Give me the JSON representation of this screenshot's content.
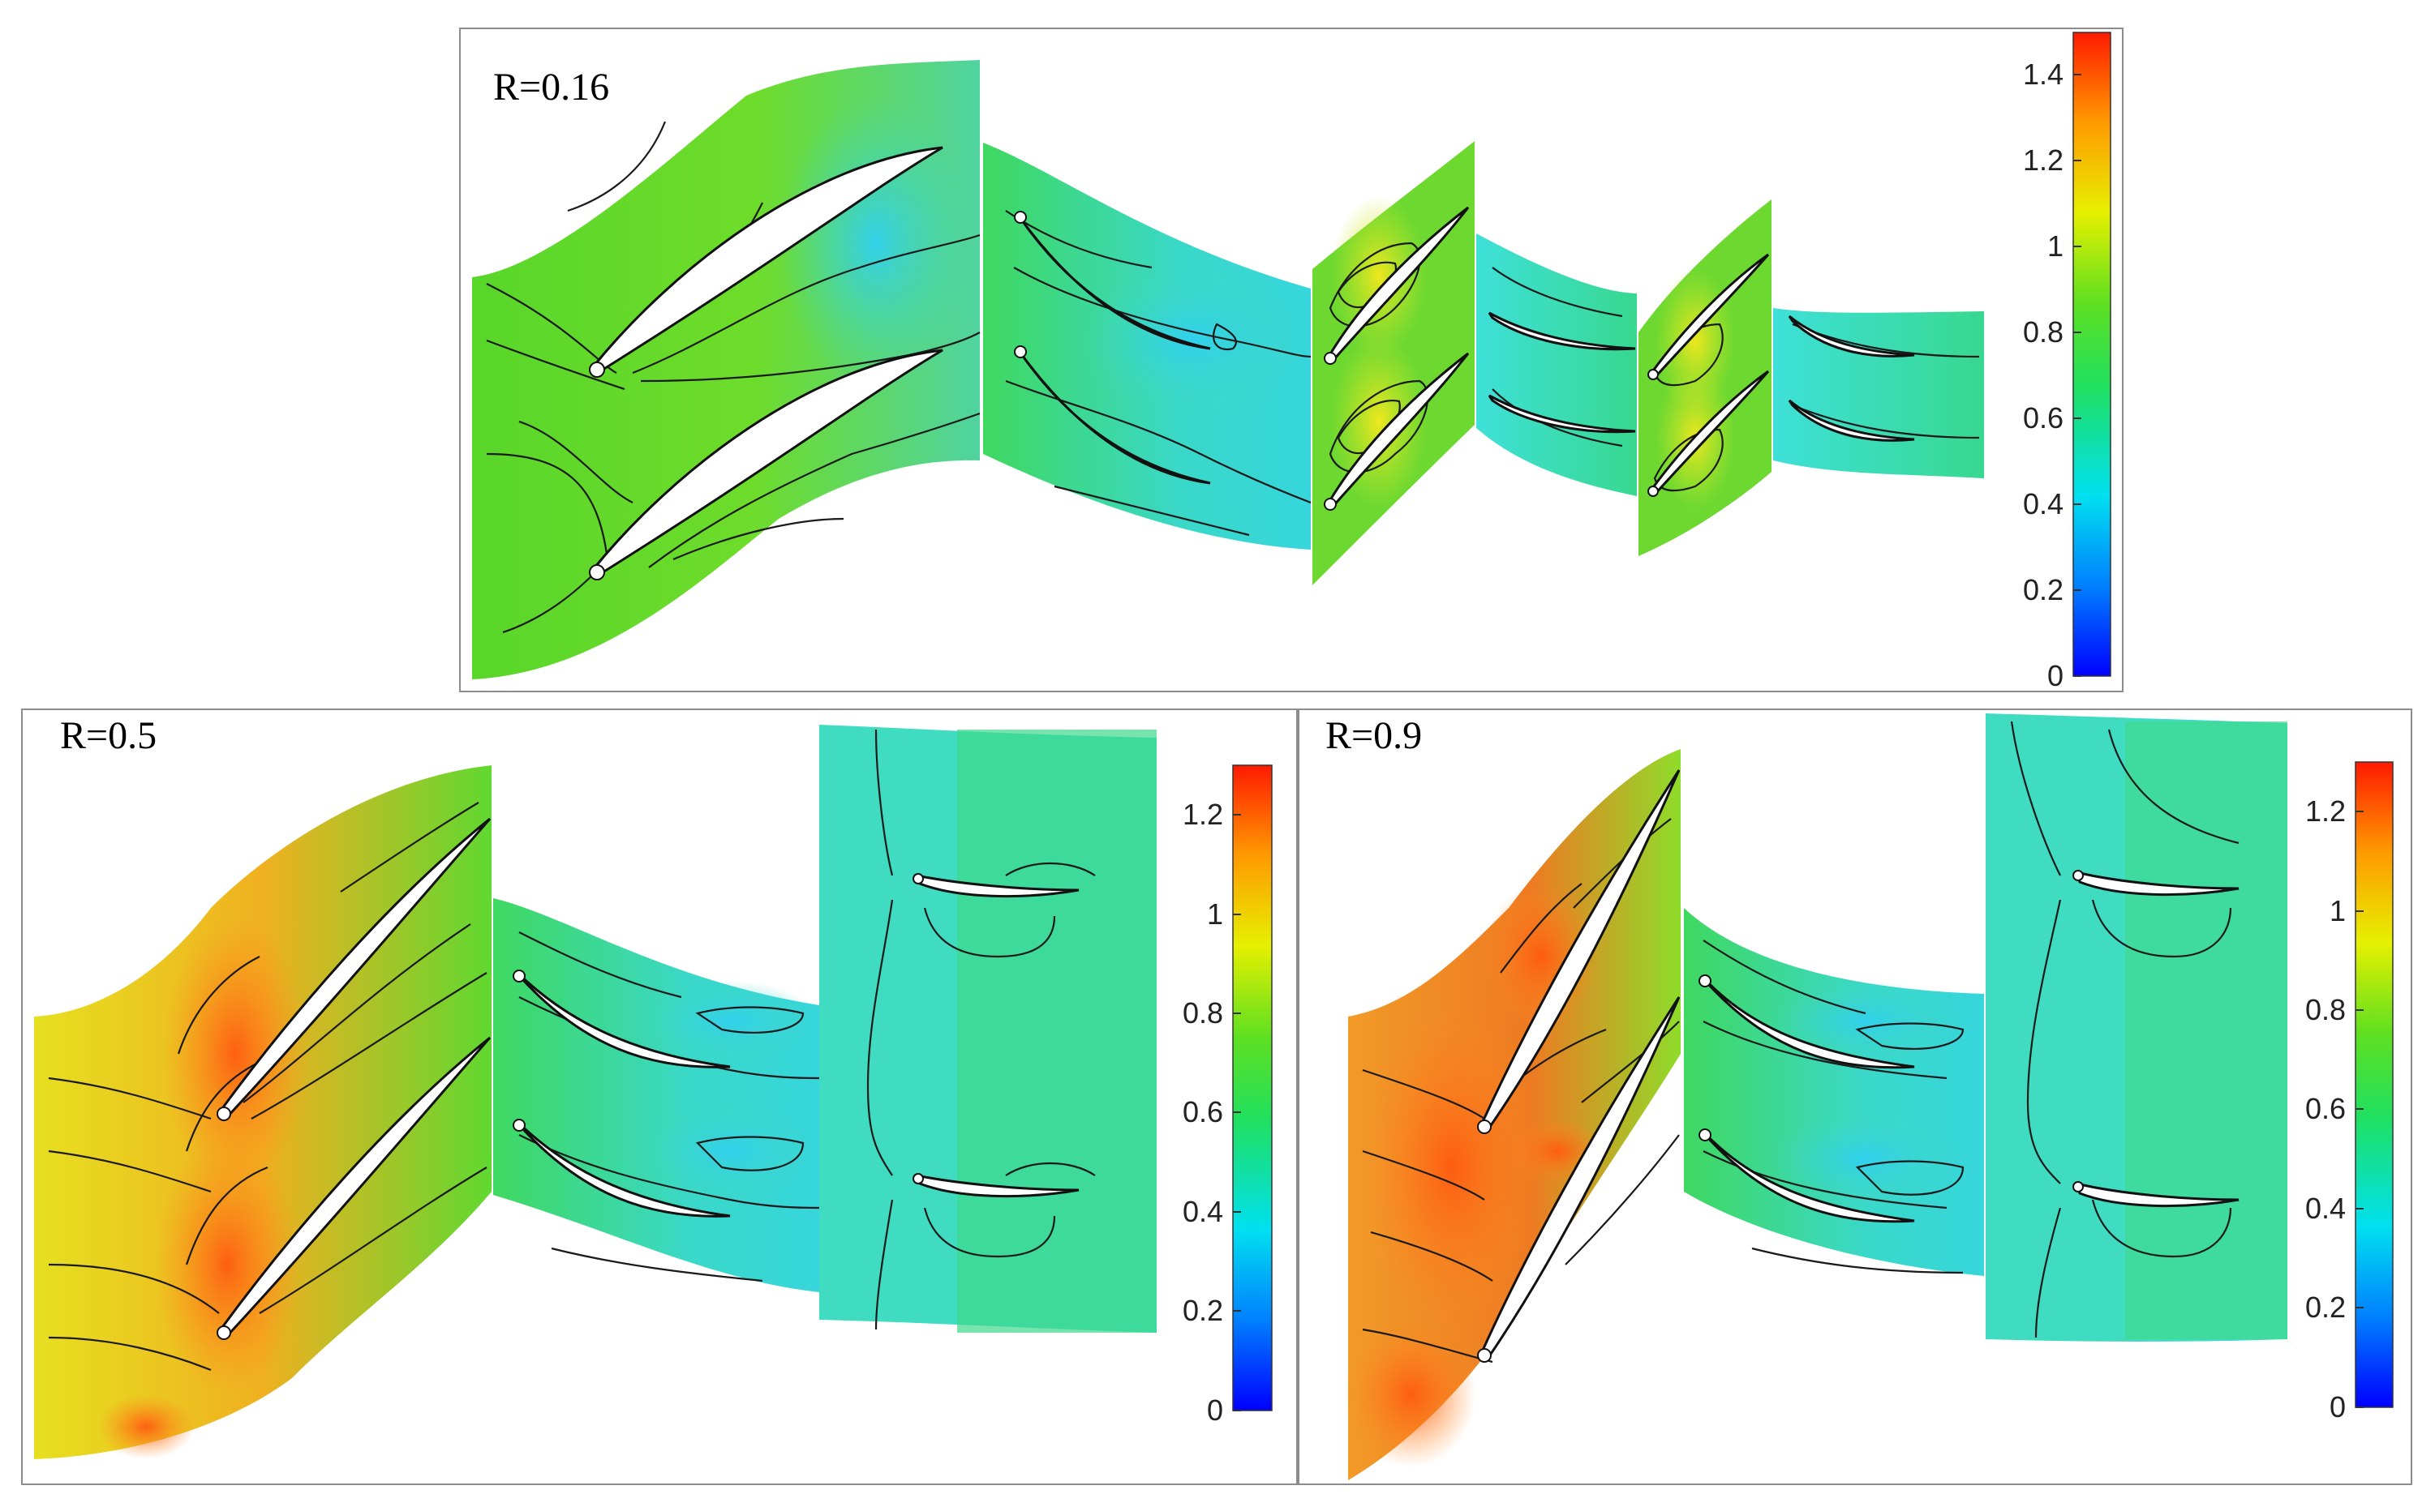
{
  "panels": [
    {
      "id": "top",
      "label": "R=0.16",
      "colorbar": {
        "ticks": [
          "0",
          "0.2",
          "0.4",
          "0.6",
          "0.8",
          "1",
          "1.2",
          "1.4"
        ],
        "min": 0,
        "max": 1.5
      }
    },
    {
      "id": "bottom-left",
      "label": "R=0.5",
      "colorbar": {
        "ticks": [
          "0",
          "0.2",
          "0.4",
          "0.6",
          "0.8",
          "1",
          "1.2"
        ],
        "min": 0,
        "max": 1.3
      }
    },
    {
      "id": "bottom-right",
      "label": "R=0.9",
      "colorbar": {
        "ticks": [
          "0",
          "0.2",
          "0.4",
          "0.6",
          "0.8",
          "1",
          "1.2"
        ],
        "min": 0,
        "max": 1.3
      }
    }
  ],
  "colormap": [
    "#0000ff",
    "#00a0ff",
    "#00e6e6",
    "#2ee82e",
    "#b4e614",
    "#ffe600",
    "#ff9b00",
    "#ff2000"
  ]
}
